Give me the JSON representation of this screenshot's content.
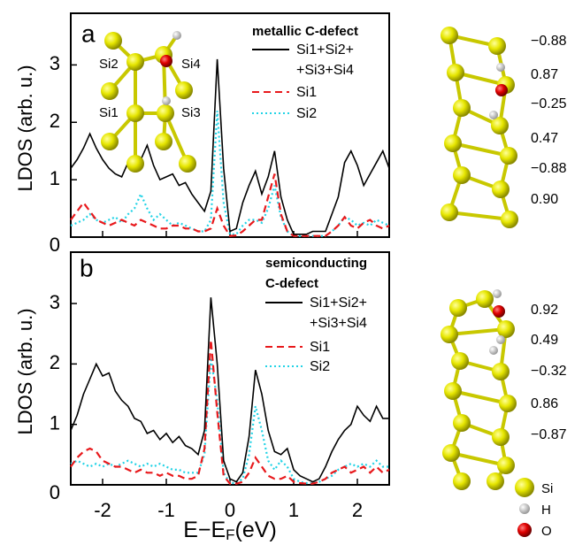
{
  "chart_data": [
    {
      "type": "line",
      "panel_label": "a",
      "ylabel": "LDOS (arb. u.)",
      "legend_title": "metallic C-defect",
      "inset_labels": [
        "Si2",
        "Si4",
        "Si1",
        "Si3"
      ],
      "atom_charges": [
        "−0.88",
        "0.87",
        "−0.25",
        "0.47",
        "−0.88",
        "0.90"
      ],
      "xlim": [
        -2.5,
        2.5
      ],
      "xticks": [
        -2,
        -1,
        0,
        1,
        2
      ],
      "ylim": [
        0,
        3.9
      ],
      "yticks": [
        0,
        1,
        2,
        3
      ],
      "x": [
        -2.5,
        -2.4,
        -2.3,
        -2.2,
        -2.1,
        -2.0,
        -1.9,
        -1.8,
        -1.7,
        -1.6,
        -1.5,
        -1.4,
        -1.3,
        -1.2,
        -1.1,
        -1.0,
        -0.9,
        -0.8,
        -0.7,
        -0.6,
        -0.5,
        -0.4,
        -0.3,
        -0.2,
        -0.1,
        0.0,
        0.1,
        0.2,
        0.3,
        0.4,
        0.5,
        0.6,
        0.7,
        0.8,
        0.9,
        1.0,
        1.1,
        1.2,
        1.3,
        1.4,
        1.5,
        1.6,
        1.7,
        1.8,
        1.9,
        2.0,
        2.1,
        2.2,
        2.3,
        2.4,
        2.5
      ],
      "series": [
        {
          "name": "Si1+Si2+\n+Si3+Si4",
          "color": "#000000",
          "dash": "solid",
          "values": [
            1.2,
            1.35,
            1.55,
            1.8,
            1.55,
            1.35,
            1.2,
            1.1,
            1.05,
            1.3,
            1.15,
            1.35,
            1.6,
            1.25,
            1.0,
            1.05,
            1.1,
            0.9,
            0.95,
            0.75,
            0.6,
            0.45,
            0.8,
            3.1,
            1.2,
            0.1,
            0.15,
            0.6,
            0.9,
            1.15,
            0.75,
            1.05,
            1.5,
            0.7,
            0.3,
            0.05,
            0.05,
            0.05,
            0.1,
            0.1,
            0.1,
            0.4,
            0.7,
            1.3,
            1.5,
            1.25,
            0.9,
            1.1,
            1.3,
            1.5,
            1.2
          ]
        },
        {
          "name": "Si1",
          "color": "#e8191c",
          "dash": "dashed",
          "values": [
            0.3,
            0.45,
            0.6,
            0.45,
            0.3,
            0.25,
            0.2,
            0.25,
            0.3,
            0.25,
            0.2,
            0.3,
            0.25,
            0.2,
            0.15,
            0.15,
            0.2,
            0.2,
            0.15,
            0.15,
            0.1,
            0.1,
            0.15,
            0.5,
            0.2,
            0.02,
            0.03,
            0.1,
            0.2,
            0.3,
            0.3,
            0.7,
            1.1,
            0.4,
            0.1,
            0.02,
            0.02,
            0.02,
            0.02,
            0.02,
            0.02,
            0.1,
            0.2,
            0.35,
            0.2,
            0.15,
            0.25,
            0.3,
            0.2,
            0.15,
            0.2
          ]
        },
        {
          "name": "Si2",
          "color": "#22d3e6",
          "dash": "dotted",
          "values": [
            0.2,
            0.25,
            0.3,
            0.4,
            0.3,
            0.25,
            0.3,
            0.35,
            0.25,
            0.4,
            0.5,
            0.75,
            0.5,
            0.3,
            0.4,
            0.3,
            0.2,
            0.25,
            0.2,
            0.15,
            0.1,
            0.1,
            0.3,
            2.2,
            0.6,
            0.05,
            0.05,
            0.2,
            0.3,
            0.3,
            0.25,
            0.5,
            0.9,
            0.35,
            0.1,
            0.02,
            0.02,
            0.02,
            0.02,
            0.02,
            0.02,
            0.1,
            0.2,
            0.35,
            0.3,
            0.2,
            0.25,
            0.2,
            0.3,
            0.25,
            0.2
          ]
        }
      ]
    },
    {
      "type": "line",
      "panel_label": "b",
      "ylabel": "LDOS (arb. u.)",
      "legend_title": "semiconducting\nC-defect",
      "xlabel": "E−E",
      "xlabel_sub": "F",
      "xlabel_suffix": "(eV)",
      "atom_charges": [
        "0.92",
        "0.49",
        "−0.32",
        "0.86",
        "−0.87"
      ],
      "atom_key": [
        "Si",
        "H",
        "O"
      ],
      "xlim": [
        -2.5,
        2.5
      ],
      "xticks": [
        -2,
        -1,
        0,
        1,
        2
      ],
      "ylim": [
        0,
        3.85
      ],
      "yticks": [
        0,
        1,
        2,
        3
      ],
      "x": [
        -2.5,
        -2.4,
        -2.3,
        -2.2,
        -2.1,
        -2.0,
        -1.9,
        -1.8,
        -1.7,
        -1.6,
        -1.5,
        -1.4,
        -1.3,
        -1.2,
        -1.1,
        -1.0,
        -0.9,
        -0.8,
        -0.7,
        -0.6,
        -0.5,
        -0.4,
        -0.3,
        -0.2,
        -0.1,
        0.0,
        0.1,
        0.2,
        0.3,
        0.4,
        0.5,
        0.6,
        0.7,
        0.8,
        0.9,
        1.0,
        1.1,
        1.2,
        1.3,
        1.4,
        1.5,
        1.6,
        1.7,
        1.8,
        1.9,
        2.0,
        2.1,
        2.2,
        2.3,
        2.4,
        2.5
      ],
      "series": [
        {
          "name": "Si1+Si2+\n+Si3+Si4",
          "color": "#000000",
          "dash": "solid",
          "values": [
            0.9,
            1.15,
            1.5,
            1.75,
            2.0,
            1.8,
            1.85,
            1.55,
            1.4,
            1.3,
            1.1,
            1.05,
            0.85,
            0.9,
            0.75,
            0.85,
            0.7,
            0.8,
            0.65,
            0.6,
            0.5,
            0.9,
            3.1,
            2.0,
            0.4,
            0.1,
            0.05,
            0.2,
            0.8,
            1.9,
            1.5,
            0.9,
            0.55,
            0.5,
            0.6,
            0.25,
            0.15,
            0.1,
            0.05,
            0.1,
            0.3,
            0.55,
            0.75,
            0.9,
            1.0,
            1.3,
            1.15,
            1.05,
            1.3,
            1.1,
            1.1
          ]
        },
        {
          "name": "Si1",
          "color": "#e8191c",
          "dash": "dashed",
          "values": [
            0.3,
            0.45,
            0.55,
            0.6,
            0.55,
            0.4,
            0.35,
            0.3,
            0.3,
            0.25,
            0.2,
            0.25,
            0.2,
            0.2,
            0.15,
            0.2,
            0.15,
            0.15,
            0.1,
            0.1,
            0.15,
            0.6,
            2.4,
            1.2,
            0.15,
            0.02,
            0.02,
            0.05,
            0.2,
            0.45,
            0.3,
            0.15,
            0.1,
            0.1,
            0.15,
            0.05,
            0.03,
            0.02,
            0.02,
            0.05,
            0.1,
            0.2,
            0.25,
            0.3,
            0.2,
            0.25,
            0.3,
            0.2,
            0.3,
            0.2,
            0.25
          ]
        },
        {
          "name": "Si2",
          "color": "#22d3e6",
          "dash": "dotted",
          "values": [
            0.35,
            0.4,
            0.35,
            0.3,
            0.35,
            0.3,
            0.35,
            0.3,
            0.35,
            0.4,
            0.35,
            0.3,
            0.35,
            0.3,
            0.35,
            0.3,
            0.25,
            0.25,
            0.2,
            0.2,
            0.2,
            0.5,
            2.1,
            1.4,
            0.2,
            0.03,
            0.03,
            0.1,
            0.5,
            1.3,
            0.9,
            0.4,
            0.25,
            0.4,
            0.3,
            0.1,
            0.05,
            0.03,
            0.03,
            0.05,
            0.1,
            0.15,
            0.25,
            0.3,
            0.35,
            0.3,
            0.35,
            0.3,
            0.4,
            0.3,
            0.3
          ]
        }
      ]
    }
  ]
}
